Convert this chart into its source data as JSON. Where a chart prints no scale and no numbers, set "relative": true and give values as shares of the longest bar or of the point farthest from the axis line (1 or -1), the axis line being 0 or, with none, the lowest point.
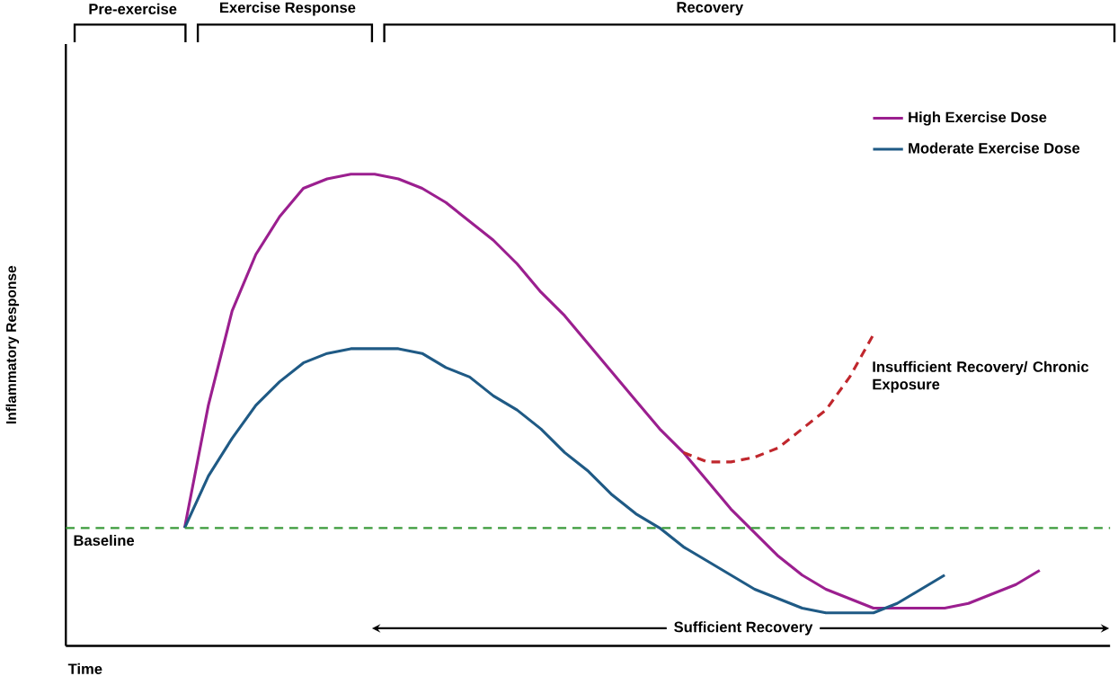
{
  "chart_data": {
    "type": "line",
    "relative": true,
    "xlabel": "Time",
    "ylabel": "Inflammatory Response",
    "legend": "top right",
    "categories": [
      null,
      null,
      null,
      null,
      null,
      null,
      null,
      null,
      null,
      null,
      null,
      null,
      null,
      null,
      null,
      null,
      null,
      null,
      null,
      null,
      null,
      null,
      null,
      null,
      null,
      null,
      null,
      null,
      null,
      null,
      null,
      null,
      null,
      null,
      null,
      null,
      null,
      null,
      null,
      null,
      null,
      null,
      null,
      null,
      null
    ],
    "series": [
      {
        "name": "High Exercise Dose",
        "color": "#9b1f8f",
        "values": [
          null,
          null,
          null,
          null,
          null,
          0.25,
          0.51,
          0.71,
          0.83,
          0.91,
          0.97,
          0.99,
          1.0,
          1.0,
          0.99,
          0.97,
          0.94,
          0.9,
          0.86,
          0.81,
          0.75,
          0.7,
          0.64,
          0.58,
          0.52,
          0.46,
          0.41,
          0.35,
          0.29,
          0.24,
          0.19,
          0.15,
          0.12,
          0.1,
          0.08,
          0.08,
          0.08,
          0.08,
          0.09,
          0.11,
          0.13,
          0.16,
          null,
          null,
          null
        ]
      },
      {
        "name": "Moderate Exercise Dose",
        "color": "#1f5a85",
        "values": [
          null,
          null,
          null,
          null,
          null,
          0.25,
          0.36,
          0.44,
          0.51,
          0.56,
          0.6,
          0.62,
          0.63,
          0.63,
          0.63,
          0.62,
          0.59,
          0.57,
          0.53,
          0.5,
          0.46,
          0.41,
          0.37,
          0.32,
          0.28,
          0.25,
          0.21,
          0.18,
          0.15,
          0.12,
          0.1,
          0.08,
          0.07,
          0.07,
          0.07,
          0.09,
          0.12,
          0.15,
          null,
          null,
          null,
          null,
          null,
          null,
          null
        ]
      },
      {
        "color": "#c0272d",
        "line_style": "dashed",
        "values": [
          null,
          null,
          null,
          null,
          null,
          null,
          null,
          null,
          null,
          null,
          null,
          null,
          null,
          null,
          null,
          null,
          null,
          null,
          null,
          null,
          null,
          null,
          null,
          null,
          null,
          null,
          0.41,
          0.39,
          0.39,
          0.4,
          0.42,
          0.46,
          0.5,
          0.57,
          0.66,
          null,
          null,
          null,
          null,
          null,
          null,
          null,
          null,
          null,
          null
        ]
      }
    ],
    "ref_lines": [
      {
        "axis": "y",
        "value": 0.25,
        "label": "Baseline",
        "color": "#3a9a3a",
        "line_style": "dashed"
      }
    ],
    "annotations": [
      "Pre-exercise",
      "Exercise Response",
      "Recovery",
      "Insufficient Recovery/ Chronic Exposure",
      "Sufficient Recovery"
    ]
  }
}
